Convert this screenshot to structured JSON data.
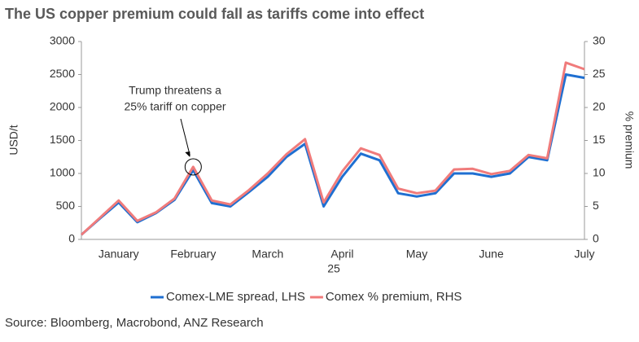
{
  "chart_data": {
    "type": "line",
    "title": "The US copper premium could fall as tariffs come into effect",
    "ylabel": "USD/t",
    "y2label": "% premium",
    "xlabel": "25",
    "categories": [
      null,
      null,
      "January",
      null,
      null,
      null,
      "February",
      null,
      null,
      null,
      "March",
      null,
      null,
      null,
      "April",
      null,
      null,
      null,
      "May",
      null,
      null,
      null,
      "June",
      null,
      null,
      null,
      null,
      "July"
    ],
    "series": [
      {
        "name": "Comex-LME spread, LHS",
        "color": "#1f6fd1",
        "values": [
          70,
          320,
          560,
          260,
          400,
          600,
          1050,
          550,
          500,
          720,
          950,
          1250,
          1450,
          500,
          950,
          1300,
          1200,
          700,
          650,
          700,
          1000,
          1000,
          950,
          1000,
          1250,
          1200,
          2500,
          2450
        ]
      },
      {
        "name": "Comex % premium, RHS",
        "color": "#f07b7b",
        "axis": "y2",
        "values": [
          0.7,
          3.3,
          5.9,
          2.8,
          4.1,
          6.2,
          11.0,
          5.9,
          5.3,
          7.5,
          10.0,
          12.9,
          15.2,
          5.6,
          10.3,
          13.8,
          12.8,
          7.7,
          7.0,
          7.4,
          10.6,
          10.7,
          9.9,
          10.4,
          12.8,
          12.3,
          26.8,
          25.8
        ]
      }
    ],
    "ylim": [
      0,
      3000
    ],
    "yticks": [
      0,
      500,
      1000,
      1500,
      2000,
      2500,
      3000
    ],
    "y2lim": [
      0,
      30
    ],
    "y2ticks": [
      0,
      5,
      10,
      15,
      20,
      25,
      30
    ],
    "grid": false,
    "annotation": [
      "Trump threatens a",
      "25% tariff on copper"
    ],
    "source": "Source:  Bloomberg, Macrobond, ANZ Research"
  }
}
